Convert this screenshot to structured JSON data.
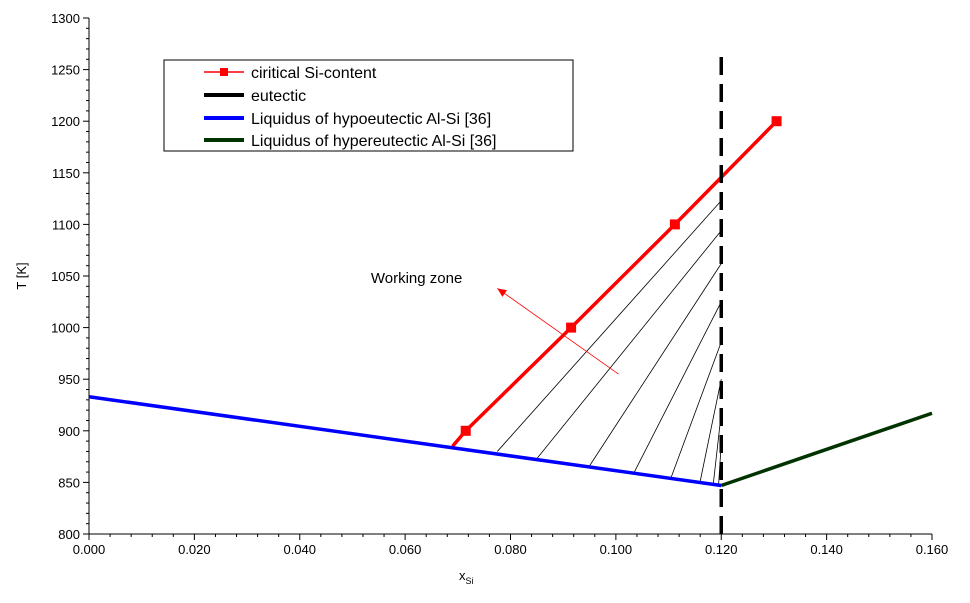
{
  "chart_data": {
    "type": "line",
    "title": "",
    "xlabel": "x",
    "xlabel_sub": "Si",
    "ylabel": "T [K]",
    "xlim": [
      0.0,
      0.16
    ],
    "ylim": [
      800,
      1300
    ],
    "x_ticks": [
      "0.000",
      "0.020",
      "0.040",
      "0.060",
      "0.080",
      "0.100",
      "0.120",
      "0.140",
      "0.160"
    ],
    "y_ticks": [
      "800",
      "850",
      "900",
      "950",
      "1000",
      "1050",
      "1100",
      "1150",
      "1200",
      "1250",
      "1300"
    ],
    "grid": false,
    "legend_position": "top-left",
    "series": [
      {
        "name": "ciritical Si-content",
        "color": "#ff0000",
        "marker": "square",
        "x": [
          0.069,
          0.0715,
          0.0915,
          0.1112,
          0.1305
        ],
        "y": [
          885,
          900,
          1000,
          1100,
          1200
        ],
        "marker_x": [
          0.0715,
          0.0915,
          0.1112,
          0.1305
        ],
        "marker_y": [
          900,
          1000,
          1100,
          1200
        ]
      },
      {
        "name": "eutectic",
        "color": "#000000",
        "style": "dashed",
        "x": [
          0.12,
          0.12
        ],
        "y": [
          800,
          1265
        ]
      },
      {
        "name": "Liquidus of hypoeutectic Al-Si [36]",
        "color": "#0000ff",
        "x": [
          0.0,
          0.12
        ],
        "y": [
          933,
          847
        ]
      },
      {
        "name": "Liquidus of hypereutectic Al-Si [36]",
        "color": "#003300",
        "x": [
          0.12,
          0.16
        ],
        "y": [
          847,
          917
        ]
      }
    ],
    "annotations": [
      {
        "text": "Working zone",
        "x": 0.0535,
        "y": 1043,
        "arrow_from": [
          0.1005,
          955
        ],
        "arrow_to": [
          0.0775,
          1038
        ]
      }
    ],
    "hatch_region": {
      "description_points": [
        [
          0.0715,
          900
        ],
        [
          0.12,
          1145
        ],
        [
          0.12,
          847
        ],
        [
          0.069,
          885
        ]
      ],
      "hatch_lines": [
        [
          [
            0.0775,
            880
          ],
          [
            0.12,
            1123
          ]
        ],
        [
          [
            0.085,
            873
          ],
          [
            0.12,
            1094
          ]
        ],
        [
          [
            0.095,
            866
          ],
          [
            0.12,
            1062
          ]
        ],
        [
          [
            0.1035,
            860
          ],
          [
            0.12,
            1025
          ]
        ],
        [
          [
            0.1105,
            855
          ],
          [
            0.12,
            986
          ]
        ],
        [
          [
            0.116,
            851
          ],
          [
            0.12,
            950
          ]
        ],
        [
          [
            0.1185,
            849
          ],
          [
            0.12,
            917
          ]
        ],
        [
          [
            0.1195,
            848
          ],
          [
            0.12,
            888
          ]
        ]
      ]
    }
  }
}
